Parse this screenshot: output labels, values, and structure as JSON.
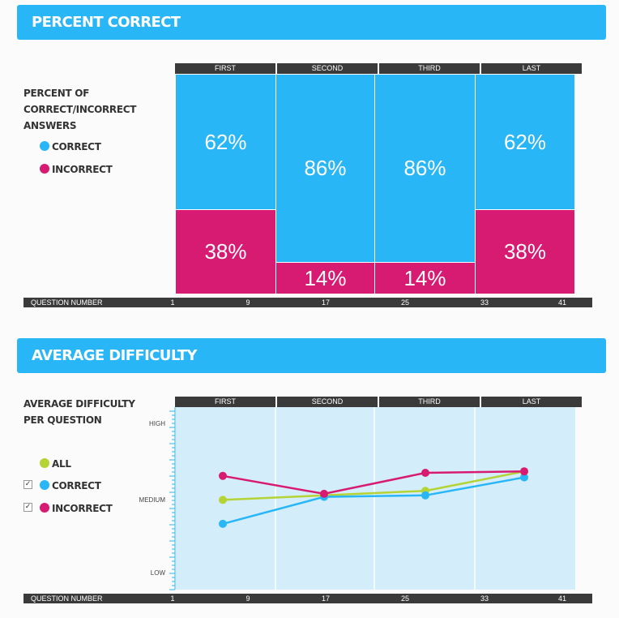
{
  "sections": {
    "percent": {
      "title": "PERCENT CORRECT"
    },
    "difficulty": {
      "title": "AVERAGE DIFFICULTY"
    }
  },
  "chart_data": [
    {
      "type": "bar",
      "subtype": "stacked-100",
      "side_title": [
        "PERCENT OF",
        "CORRECT/INCORRECT",
        "ANSWERS"
      ],
      "columns": [
        "FIRST",
        "SECOND",
        "THIRD",
        "LAST"
      ],
      "series": [
        {
          "name": "CORRECT",
          "color": "#29b6f6",
          "values": [
            62,
            86,
            86,
            62
          ]
        },
        {
          "name": "INCORRECT",
          "color": "#d81b72",
          "values": [
            38,
            14,
            14,
            38
          ]
        }
      ],
      "xlabel": "QUESTION NUMBER",
      "xticks": [
        "1",
        "9",
        "17",
        "25",
        "33",
        "41"
      ]
    },
    {
      "type": "line",
      "side_title": [
        "AVERAGE DIFFICULTY",
        "PER QUESTION"
      ],
      "columns": [
        "FIRST",
        "SECOND",
        "THIRD",
        "LAST"
      ],
      "yticks": [
        "HIGH",
        "MEDIUM",
        "LOW"
      ],
      "ylim": [
        0,
        1
      ],
      "series": [
        {
          "name": "ALL",
          "color": "#b5d334",
          "values": [
            0.49,
            0.52,
            0.55,
            0.68
          ]
        },
        {
          "name": "CORRECT",
          "color": "#29b6f6",
          "values": [
            0.33,
            0.51,
            0.52,
            0.64
          ]
        },
        {
          "name": "INCORRECT",
          "color": "#d81b72",
          "values": [
            0.65,
            0.53,
            0.67,
            0.68
          ]
        }
      ],
      "xlabel": "QUESTION NUMBER",
      "xticks": [
        "1",
        "9",
        "17",
        "25",
        "33",
        "41"
      ]
    }
  ]
}
